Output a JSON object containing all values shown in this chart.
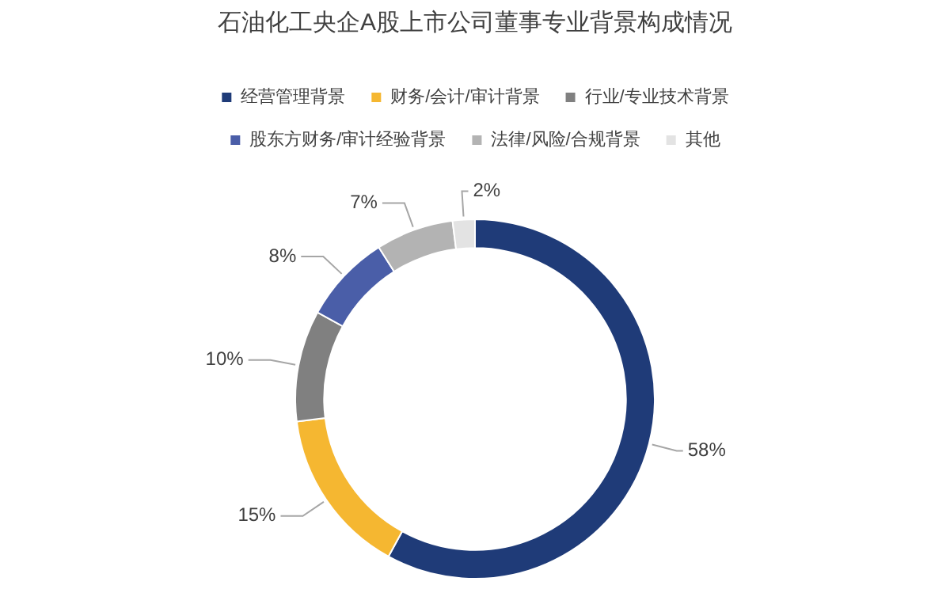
{
  "chart_data": {
    "type": "donut",
    "title": "石油化工央企A股上市公司董事专业背景构成情况",
    "categories": [
      "经营管理背景",
      "财务/会计/审计背景",
      "行业/专业技术背景",
      "股东方财务/审计经验背景",
      "法律/风险/合规背景",
      "其他"
    ],
    "values": [
      58,
      15,
      10,
      8,
      7,
      2
    ],
    "colors": [
      "#1f3b78",
      "#f5b731",
      "#808080",
      "#4a5ea8",
      "#b3b3b3",
      "#e3e3e3"
    ],
    "value_labels": [
      "58%",
      "15%",
      "10%",
      "8%",
      "7%",
      "2%"
    ],
    "legend": "top"
  }
}
